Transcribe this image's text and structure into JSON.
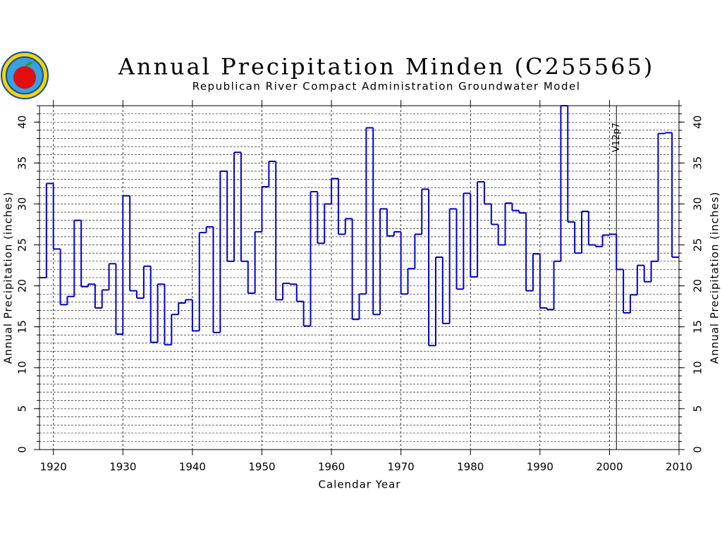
{
  "chart_data": {
    "type": "step",
    "title": "Annual Precipitation Minden (C255565)",
    "subtitle": "Republican River Compact Administration Groundwater Model",
    "x_label": "Calendar Year",
    "y_label": "Annual Precipitation (inches)",
    "x": [
      1918,
      1919,
      1920,
      1921,
      1922,
      1923,
      1924,
      1925,
      1926,
      1927,
      1928,
      1929,
      1930,
      1931,
      1932,
      1933,
      1934,
      1935,
      1936,
      1937,
      1938,
      1939,
      1940,
      1941,
      1942,
      1943,
      1944,
      1945,
      1946,
      1947,
      1948,
      1949,
      1950,
      1951,
      1952,
      1953,
      1954,
      1955,
      1956,
      1957,
      1958,
      1959,
      1960,
      1961,
      1962,
      1963,
      1964,
      1965,
      1966,
      1967,
      1968,
      1969,
      1970,
      1971,
      1972,
      1973,
      1974,
      1975,
      1976,
      1977,
      1978,
      1979,
      1980,
      1981,
      1982,
      1983,
      1984,
      1985,
      1986,
      1987,
      1988,
      1989,
      1990,
      1991,
      1992,
      1993,
      1994,
      1995,
      1996,
      1997,
      1998,
      1999,
      2000,
      2001,
      2002,
      2003,
      2004,
      2005,
      2006,
      2007,
      2008,
      2009
    ],
    "series": [
      {
        "name": "Annual Precipitation",
        "color": "#0000cc",
        "values": [
          21,
          32.5,
          24.5,
          17.7,
          18.7,
          28,
          19.9,
          20.2,
          17.3,
          19.5,
          22.7,
          14.1,
          31,
          19.4,
          18.5,
          22.4,
          13.1,
          20.2,
          12.8,
          16.5,
          17.9,
          18.3,
          14.5,
          26.5,
          27.2,
          14.3,
          34,
          23,
          36.3,
          23,
          19.1,
          26.6,
          32.1,
          35.2,
          18.3,
          20.3,
          20.2,
          18.1,
          15.1,
          31.5,
          25.2,
          30,
          33.1,
          26.3,
          28.2,
          15.9,
          19,
          39.3,
          16.5,
          29.4,
          26.1,
          26.6,
          19,
          22.1,
          26.3,
          31.8,
          12.7,
          23.5,
          15.4,
          29.4,
          19.6,
          31.3,
          21.1,
          32.7,
          30,
          27.5,
          25,
          30.1,
          29.2,
          28.9,
          19.4,
          23.9,
          17.3,
          17.1,
          23,
          42,
          27.8,
          24,
          29.1,
          25,
          24.8,
          26.2,
          26.3,
          22,
          16.7,
          18.9,
          22.5,
          20.5,
          23,
          38.6,
          38.7,
          23.5
        ]
      }
    ],
    "xlim": [
      1918,
      2010
    ],
    "ylim": [
      0,
      42
    ],
    "xticks": [
      1920,
      1930,
      1940,
      1950,
      1960,
      1970,
      1980,
      1990,
      2000,
      2010
    ],
    "yticks": [
      0,
      5,
      10,
      15,
      20,
      25,
      30,
      35,
      40
    ],
    "yminor_step": 1,
    "grid": true,
    "annotations": [
      {
        "text": "V12p7",
        "x": 2001
      }
    ]
  }
}
